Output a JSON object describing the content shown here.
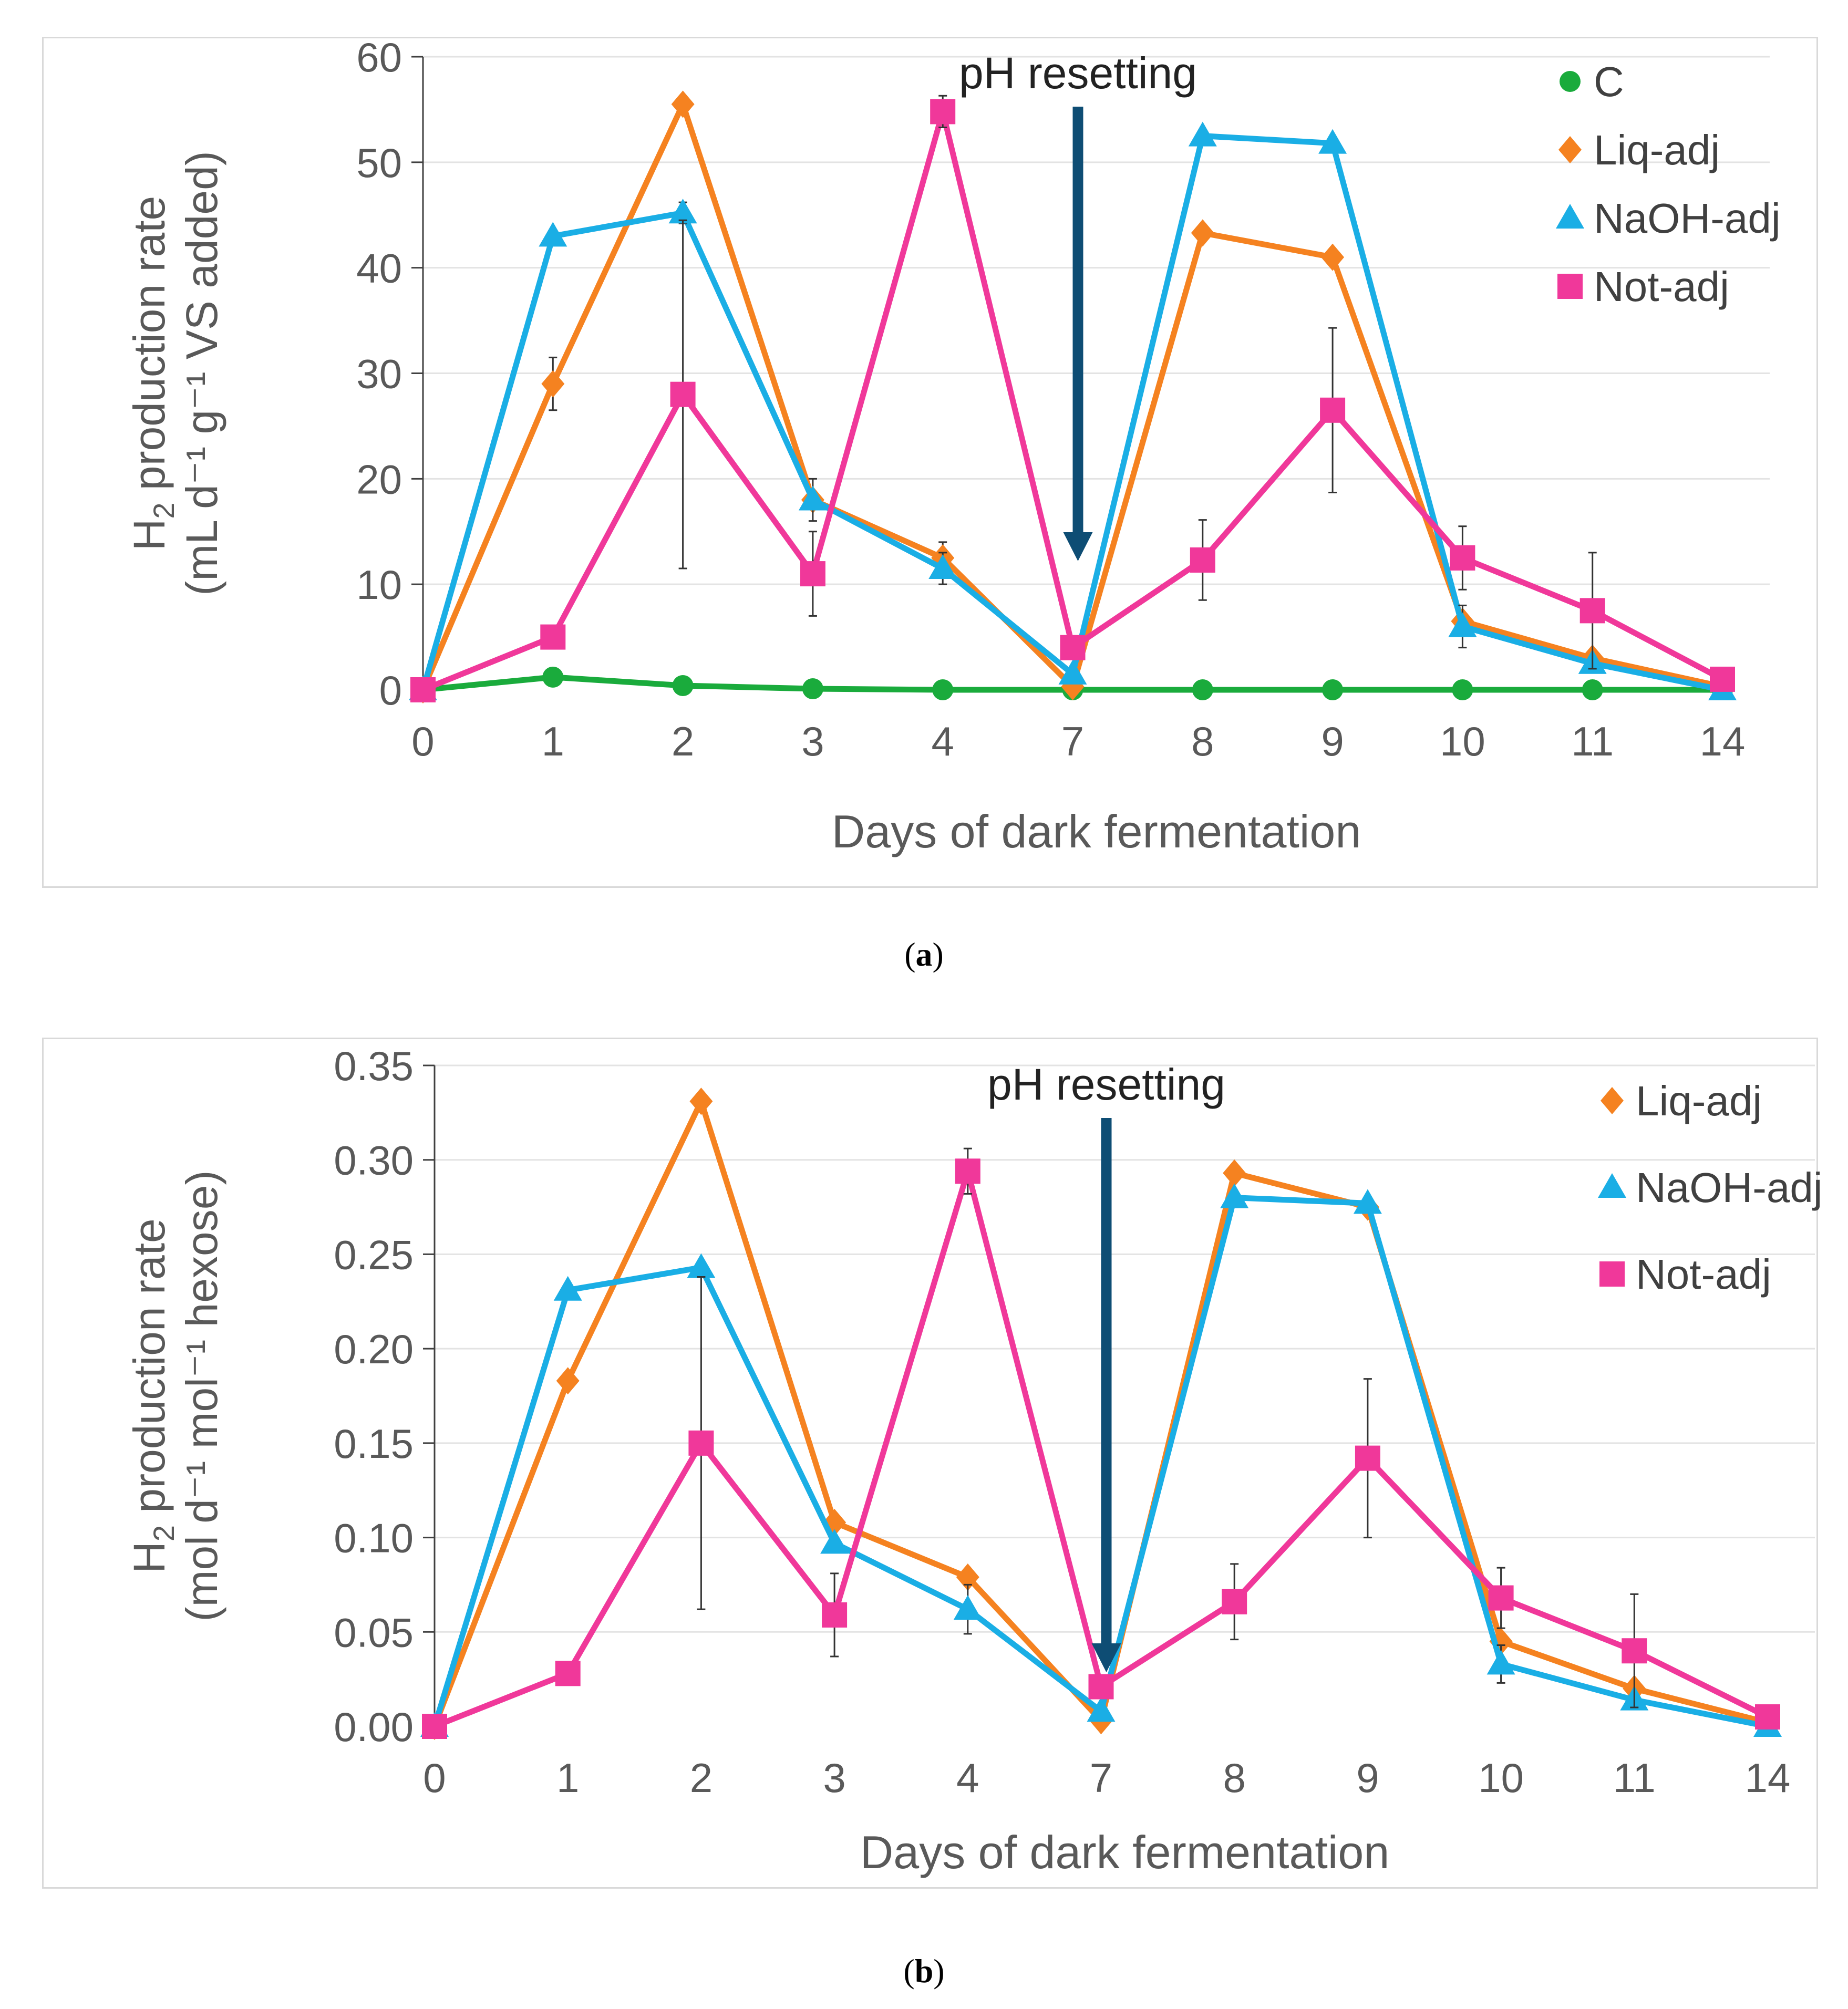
{
  "chart_data": [
    {
      "type": "line",
      "panel_label": "a",
      "ylabel": {
        "line1_main": "H",
        "line1_sub": "2",
        "line1_rest": " production rate",
        "line2": "(mL d⁻¹ g⁻¹ VS added)"
      },
      "xlabel": "Days of dark fermentation",
      "categories": [
        "0",
        "1",
        "2",
        "3",
        "4",
        "7",
        "8",
        "9",
        "10",
        "11",
        "14"
      ],
      "ylim": [
        0,
        60
      ],
      "yticks": [
        0,
        10,
        20,
        30,
        40,
        50,
        60
      ],
      "ytick_labels": [
        "0",
        "10",
        "20",
        "30",
        "40",
        "50",
        "60"
      ],
      "grid": true,
      "legend_position": "top-right",
      "annotation": {
        "text": "pH resetting",
        "category": "7"
      },
      "series": [
        {
          "name": "C",
          "color": "#1aab3c",
          "marker": "circle",
          "values": [
            0,
            1.2,
            0.4,
            0.1,
            0,
            0,
            0,
            0,
            0,
            0,
            0
          ],
          "errors": [
            0,
            0,
            0,
            0,
            0,
            0,
            0,
            0,
            0,
            0,
            0
          ]
        },
        {
          "name": "Liq-adj",
          "color": "#f58220",
          "marker": "diamond",
          "values": [
            0,
            29,
            55.5,
            18,
            12.5,
            0.3,
            43.3,
            41,
            6.5,
            3,
            0.3
          ],
          "errors": [
            0,
            2.5,
            0,
            0,
            1.5,
            0,
            0,
            0,
            0,
            0,
            0
          ]
        },
        {
          "name": "NaOH-adj",
          "color": "#1aaee5",
          "marker": "triangle",
          "values": [
            0,
            43,
            45.2,
            18,
            11.5,
            1.5,
            52.5,
            51.8,
            6,
            2.5,
            0
          ],
          "errors": [
            0,
            0,
            1,
            2,
            1.5,
            0,
            0,
            0,
            2,
            0,
            0
          ]
        },
        {
          "name": "Not-adj",
          "color": "#f0389a",
          "marker": "square",
          "values": [
            0,
            5,
            28,
            11,
            54.8,
            4,
            12.3,
            26.5,
            12.5,
            7.5,
            1
          ],
          "errors": [
            0,
            0,
            16.5,
            4,
            1.5,
            0,
            3.8,
            7.8,
            3,
            5.5,
            0
          ]
        }
      ]
    },
    {
      "type": "line",
      "panel_label": "b",
      "ylabel": {
        "line1_main": "H",
        "line1_sub": "2",
        "line1_rest": " production rate",
        "line2": "(mol d⁻¹ mol⁻¹ hexose)"
      },
      "xlabel": "Days of dark fermentation",
      "categories": [
        "0",
        "1",
        "2",
        "3",
        "4",
        "7",
        "8",
        "9",
        "10",
        "11",
        "14"
      ],
      "ylim": [
        0,
        0.35
      ],
      "yticks": [
        0,
        0.05,
        0.1,
        0.15,
        0.2,
        0.25,
        0.3,
        0.35
      ],
      "ytick_labels": [
        "0.00",
        "0.05",
        "0.10",
        "0.15",
        "0.20",
        "0.25",
        "0.30",
        "0.35"
      ],
      "grid": true,
      "legend_position": "top-right",
      "annotation": {
        "text": "pH resetting",
        "category": "7"
      },
      "series": [
        {
          "name": "Liq-adj",
          "color": "#f58220",
          "marker": "diamond",
          "values": [
            0,
            0.183,
            0.331,
            0.108,
            0.079,
            0.003,
            0.293,
            0.275,
            0.045,
            0.02,
            0.002
          ],
          "errors": [
            0,
            0,
            0,
            0,
            0,
            0,
            0,
            0,
            0,
            0,
            0
          ]
        },
        {
          "name": "NaOH-adj",
          "color": "#1aaee5",
          "marker": "triangle",
          "values": [
            0,
            0.231,
            0.243,
            0.097,
            0.062,
            0.008,
            0.28,
            0.277,
            0.033,
            0.014,
            0
          ],
          "errors": [
            0,
            0,
            0,
            0,
            0.013,
            0,
            0,
            0,
            0.01,
            0,
            0
          ]
        },
        {
          "name": "Not-adj",
          "color": "#f0389a",
          "marker": "square",
          "values": [
            0,
            0.028,
            0.15,
            0.059,
            0.294,
            0.021,
            0.066,
            0.142,
            0.068,
            0.04,
            0.005
          ],
          "errors": [
            0,
            0,
            0.088,
            0.022,
            0.012,
            0,
            0.02,
            0.042,
            0.016,
            0.03,
            0
          ]
        }
      ]
    }
  ],
  "captions": {
    "a": "a",
    "b": "b"
  }
}
